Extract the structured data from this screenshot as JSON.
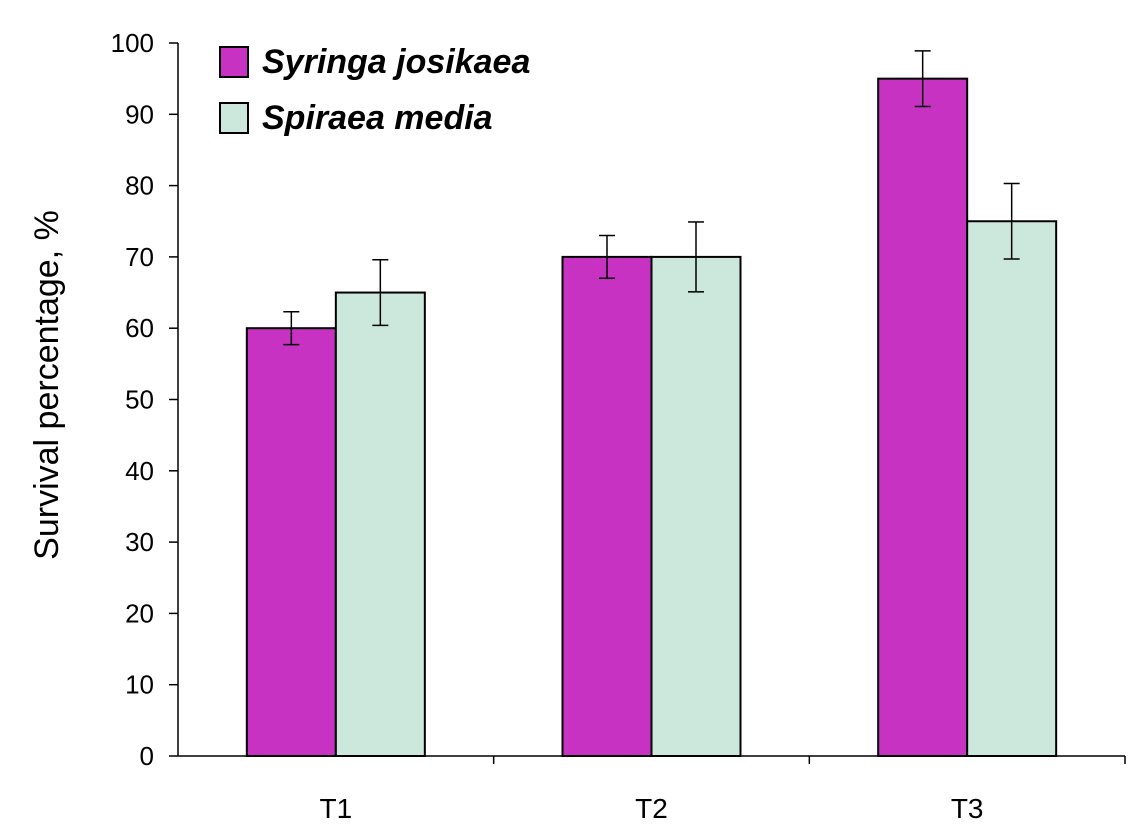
{
  "chart_data": {
    "type": "bar",
    "categories": [
      "T1",
      "T2",
      "T3"
    ],
    "series": [
      {
        "name": "Syringa josikaea",
        "color": "#c832c2",
        "values": [
          60,
          70,
          95
        ],
        "errors": [
          2.3,
          3.0,
          3.9
        ]
      },
      {
        "name": "Spiraea media",
        "color": "#cce8dc",
        "values": [
          65,
          70,
          75
        ],
        "errors": [
          4.6,
          4.9,
          5.3
        ]
      }
    ],
    "title": "",
    "xlabel": "",
    "ylabel": "Survival percentage, %",
    "ylim": [
      0,
      100
    ],
    "yticks": [
      0,
      10,
      20,
      30,
      40,
      50,
      60,
      70,
      80,
      90,
      100
    ],
    "grid": false,
    "legend_position": "top-left"
  }
}
